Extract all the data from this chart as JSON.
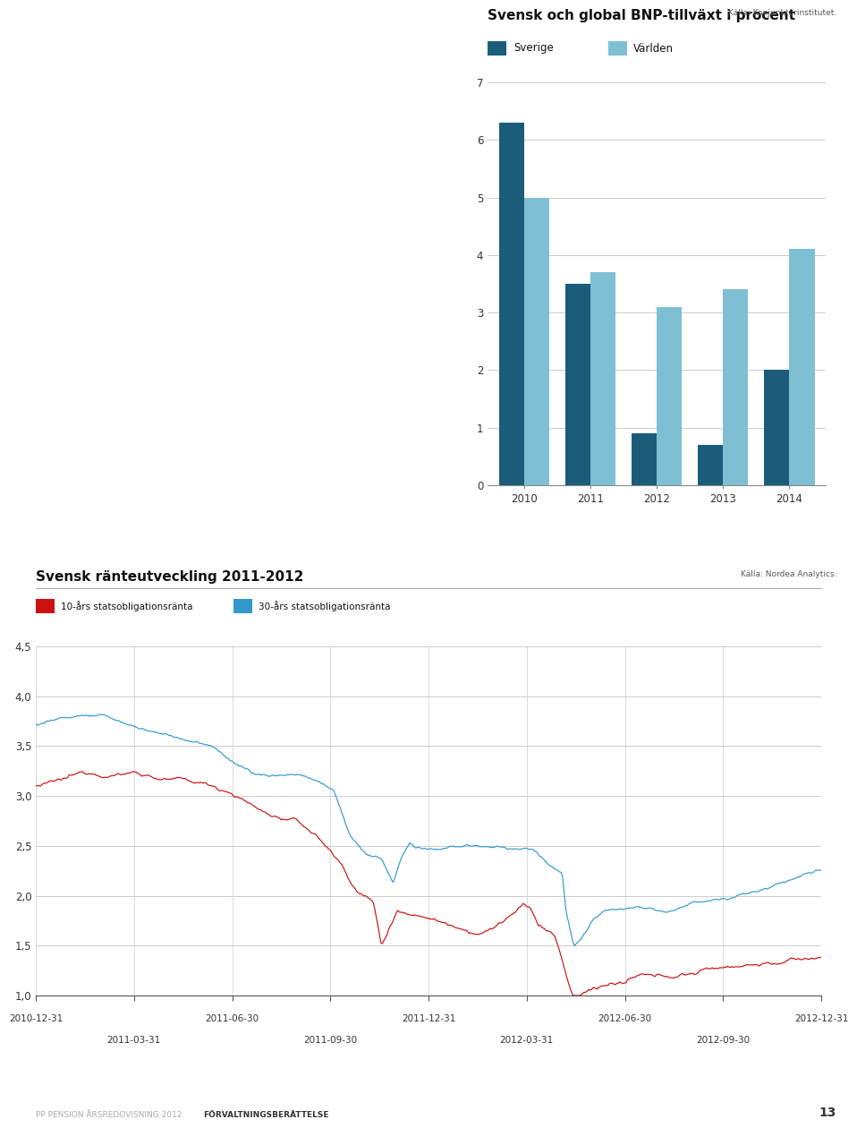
{
  "bar_title": "Svensk och global BNP-tillväxt i procent",
  "bar_source": "Källa: Konjunkturinstitutet.",
  "bar_years": [
    2010,
    2011,
    2012,
    2013,
    2014
  ],
  "bar_sverige": [
    6.3,
    3.5,
    0.9,
    0.7,
    2.0
  ],
  "bar_varlden": [
    5.0,
    3.7,
    3.1,
    3.4,
    4.1
  ],
  "bar_color_sverige": "#1a5c7a",
  "bar_color_varlden": "#7fbfd4",
  "bar_ylim": [
    0,
    7
  ],
  "bar_yticks": [
    0,
    1,
    2,
    3,
    4,
    5,
    6,
    7
  ],
  "legend_sverige": "Sverige",
  "legend_varlden": "Världen",
  "line_title": "Svensk ränteutveckling 2011-2012",
  "line_source": "Källa: Nordea Analytics.",
  "line_color_10": "#cc1111",
  "line_color_30": "#3399cc",
  "line_label_10": "10-års statsobligationsränta",
  "line_label_30": "30-års statsobligationsränta",
  "line_ylim": [
    1.0,
    4.5
  ],
  "line_yticks": [
    1.0,
    1.5,
    2.0,
    2.5,
    3.0,
    3.5,
    4.0,
    4.5
  ],
  "xtick_labels": [
    "2010-12-31",
    "2011-03-31",
    "2011-06-30",
    "2011-09-30",
    "2011-12-31",
    "2012-03-31",
    "2012-06-30",
    "2012-09-30",
    "2012-12-31"
  ],
  "bg_color": "#ffffff",
  "grid_color": "#cccccc",
  "text_color": "#111111",
  "footer_left": "PP PENSION ÅRSREDOVISNING 2012",
  "footer_bold": "FÖRVALTNINGSBERÄTTELSE",
  "footer_page": "13"
}
